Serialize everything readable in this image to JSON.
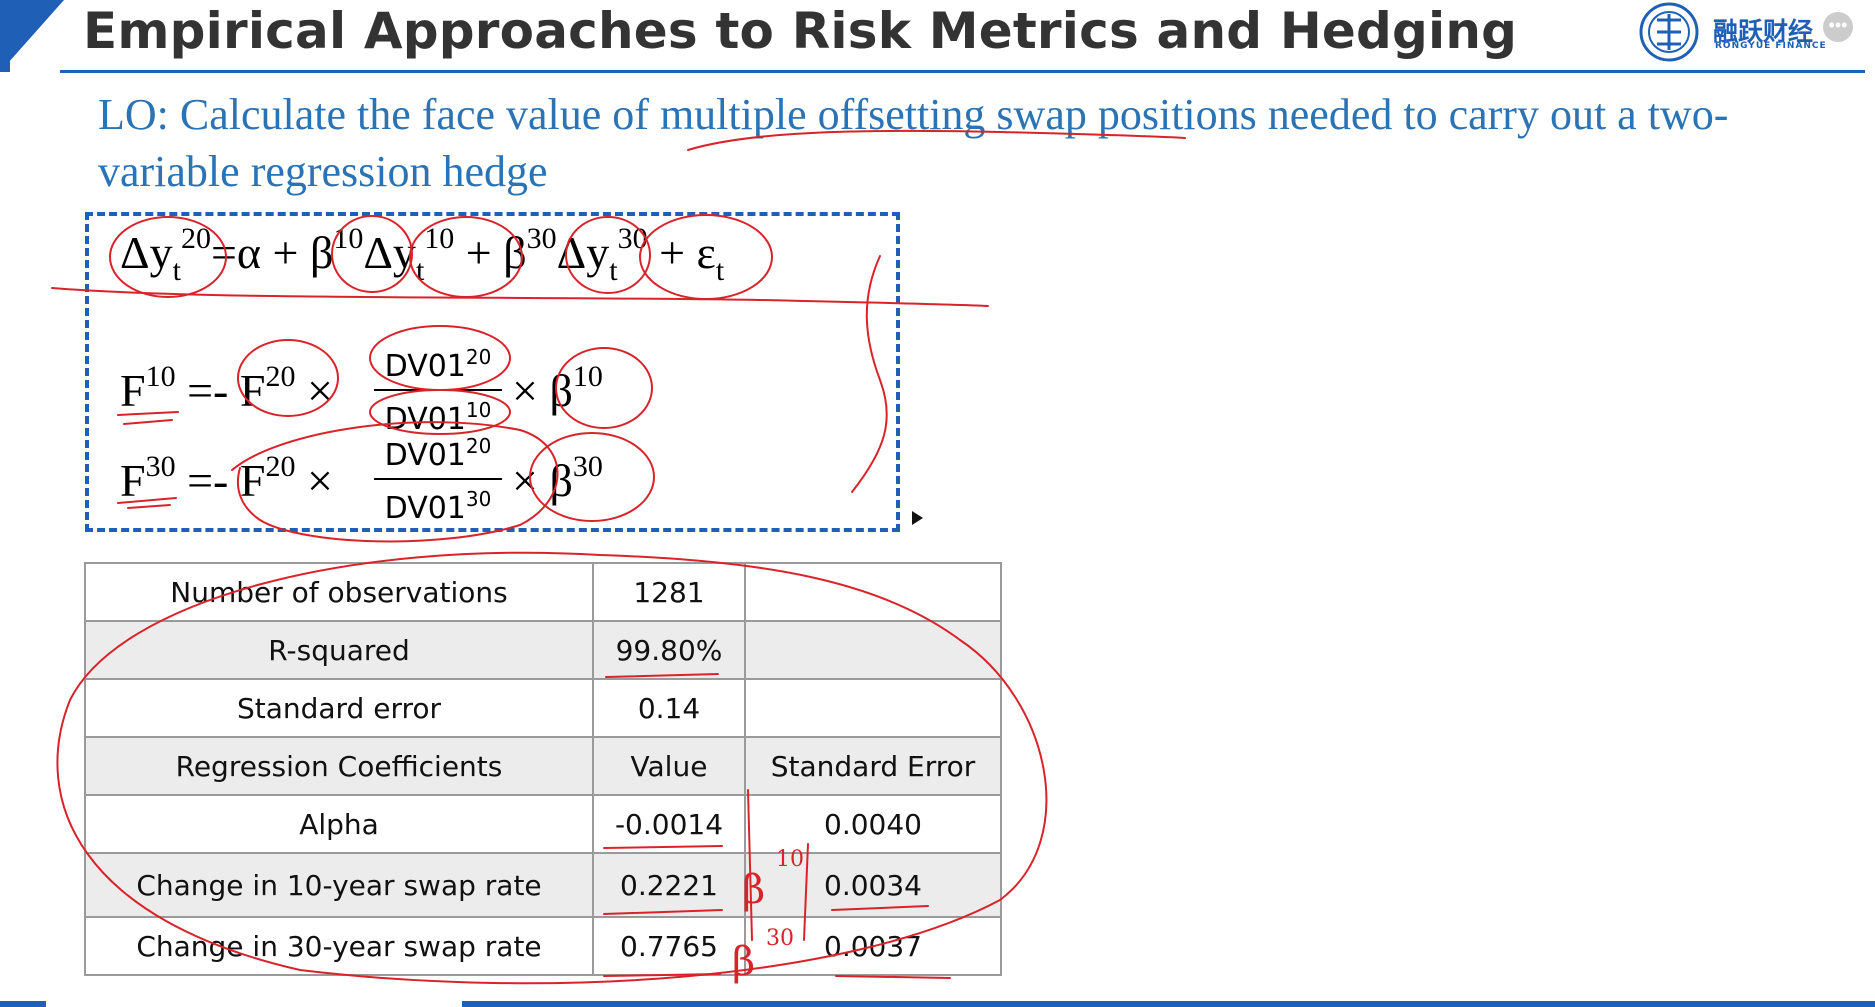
{
  "header": {
    "title": "Empirical Approaches to Risk Metrics and Hedging",
    "brand_name": "融跃财经",
    "brand_sub": "RONGYUE FINANCE",
    "brand_color": "#1f5fb5"
  },
  "objective": {
    "text": "LO: Calculate the face value of multiple offsetting swap positions needed to carry out a two-variable regression hedge",
    "color": "#2a73b5"
  },
  "formulas": {
    "regression": {
      "delta_y": "Δy",
      "t": "t",
      "twenty": "20",
      "ten": "10",
      "thirty": "30",
      "equals_alpha": "=α +",
      "beta": "β",
      "plus": "+",
      "epsilon_t": "+ ε",
      "eps_sub": "t"
    },
    "hedge_10": {
      "lhs": "F",
      "lhs_sup": "10",
      "middle": " =- F",
      "mid_sup": "20",
      "times1": " ×",
      "num": "DV01",
      "num_sup": "20",
      "den": "DV01",
      "den_sup": "10",
      "times2": "× β",
      "beta_sup": "10"
    },
    "hedge_30": {
      "lhs": "F",
      "lhs_sup": "30",
      "middle": " =- F",
      "mid_sup": "20",
      "times1": " ×",
      "num": "DV01",
      "num_sup": "20",
      "den": "DV01",
      "den_sup": "30",
      "times2": "× β",
      "beta_sup": "30"
    }
  },
  "table": {
    "rows": [
      {
        "label": "Number of observations",
        "value": "1281",
        "se": ""
      },
      {
        "label": "R-squared",
        "value": "99.80%",
        "se": ""
      },
      {
        "label": "Standard error",
        "value": "0.14",
        "se": ""
      },
      {
        "label": "Regression Coefficients",
        "value": "Value",
        "se": "Standard Error"
      },
      {
        "label": "Alpha",
        "value": "-0.0014",
        "se": "0.0040"
      },
      {
        "label": "Change in 10-year swap rate",
        "value": "0.2221",
        "se": "0.0034"
      },
      {
        "label": "Change in 30-year swap rate",
        "value": "0.7765",
        "se": "0.0037"
      }
    ]
  },
  "annotations": {
    "ink_color": "#d9232a",
    "beta10_sup": "10",
    "beta30_sup": "30",
    "beta_glyph": "β"
  }
}
